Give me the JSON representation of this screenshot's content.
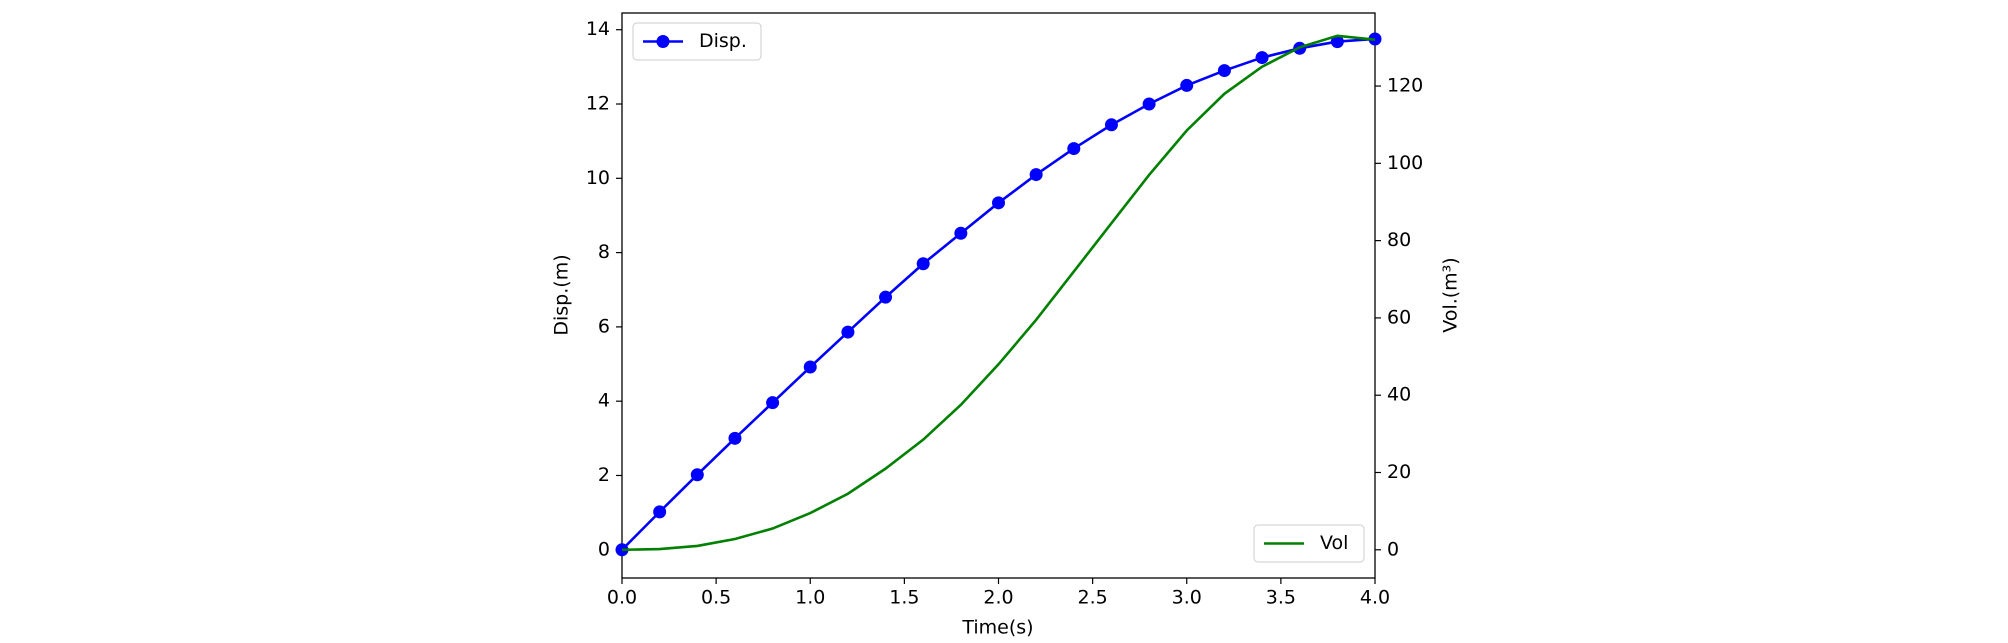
{
  "chart_data": {
    "type": "line",
    "x_label": "Time(s)",
    "y_label": "Disp.(m)",
    "y2_label": "Vol.(m³)",
    "x": [
      0.0,
      0.2,
      0.4,
      0.6,
      0.8,
      1.0,
      1.2,
      1.4,
      1.6,
      1.8,
      2.0,
      2.2,
      2.4,
      2.6,
      2.8,
      3.0,
      3.2,
      3.4,
      3.6,
      3.8,
      4.0
    ],
    "series": [
      {
        "name": "Disp.",
        "color": "#0000ff",
        "marker": "circle",
        "legend": "upper left",
        "values": [
          0,
          1.02,
          2.02,
          3.0,
          3.96,
          4.92,
          5.86,
          6.8,
          7.7,
          8.52,
          9.34,
          10.1,
          10.8,
          11.44,
          12.0,
          12.5,
          12.9,
          13.25,
          13.5,
          13.68,
          13.75
        ]
      },
      {
        "name": "Vol",
        "color": "#008000",
        "axis": "y2",
        "legend": "lower right",
        "values": [
          0,
          0.2,
          1,
          2.8,
          5.5,
          9.5,
          14.5,
          21,
          28.5,
          37.5,
          48,
          59.5,
          72,
          84.5,
          97,
          108.5,
          118,
          125,
          130,
          133,
          132
        ]
      }
    ],
    "xlim": [
      0,
      4
    ],
    "xticks": [
      {
        "value": 0,
        "label": "0.0"
      },
      {
        "value": 0.5,
        "label": "0.5"
      },
      {
        "value": 1,
        "label": "1.0"
      },
      {
        "value": 1.5,
        "label": "1.5"
      },
      {
        "value": 2,
        "label": "2.0"
      },
      {
        "value": 2.5,
        "label": "2.5"
      },
      {
        "value": 3,
        "label": "3.0"
      },
      {
        "value": 3.5,
        "label": "3.5"
      },
      {
        "value": 4,
        "label": "4.0"
      }
    ],
    "ylim": [
      -0.76,
      14.45
    ],
    "yticks": [
      0,
      2,
      4,
      6,
      8,
      10,
      12,
      14
    ],
    "y2lim": [
      -7.3,
      138.9
    ],
    "y2ticks": [
      0,
      20,
      40,
      60,
      80,
      100,
      120
    ]
  }
}
